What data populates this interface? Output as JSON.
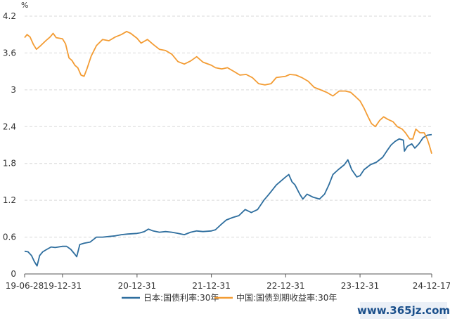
{
  "chart_data": {
    "type": "line",
    "y_unit": "%",
    "ylim": [
      0,
      4.2
    ],
    "y_ticks": [
      "0",
      "0.6",
      "1.2",
      "1.8",
      "2.4",
      "3",
      "3.6",
      "4.2"
    ],
    "x_tick_labels": [
      "19-06-28",
      "19-12-31",
      "20-12-31",
      "21-12-31",
      "22-12-31",
      "23-12-31",
      "24-12-17"
    ],
    "x_tick_dates": [
      "2019-06-28",
      "2019-12-31",
      "2020-12-31",
      "2021-12-31",
      "2022-12-31",
      "2023-12-31",
      "2024-12-17"
    ],
    "grid": true,
    "legend_position": "bottom",
    "series": [
      {
        "name": "日本:国债利率:30年",
        "color": "#2e6e9e",
        "points": [
          [
            "2019-06-28",
            0.37
          ],
          [
            "2019-07-15",
            0.36
          ],
          [
            "2019-08-01",
            0.3
          ],
          [
            "2019-08-15",
            0.2
          ],
          [
            "2019-08-28",
            0.13
          ],
          [
            "2019-09-10",
            0.3
          ],
          [
            "2019-09-25",
            0.36
          ],
          [
            "2019-10-15",
            0.4
          ],
          [
            "2019-11-05",
            0.44
          ],
          [
            "2019-11-25",
            0.43
          ],
          [
            "2019-12-31",
            0.45
          ],
          [
            "2020-01-20",
            0.45
          ],
          [
            "2020-02-10",
            0.4
          ],
          [
            "2020-03-01",
            0.32
          ],
          [
            "2020-03-10",
            0.28
          ],
          [
            "2020-03-25",
            0.48
          ],
          [
            "2020-04-15",
            0.5
          ],
          [
            "2020-05-15",
            0.52
          ],
          [
            "2020-06-15",
            0.6
          ],
          [
            "2020-07-15",
            0.6
          ],
          [
            "2020-08-15",
            0.61
          ],
          [
            "2020-09-15",
            0.62
          ],
          [
            "2020-10-15",
            0.64
          ],
          [
            "2020-11-15",
            0.65
          ],
          [
            "2020-12-31",
            0.66
          ],
          [
            "2021-01-15",
            0.67
          ],
          [
            "2021-02-05",
            0.69
          ],
          [
            "2021-02-25",
            0.73
          ],
          [
            "2021-03-20",
            0.7
          ],
          [
            "2021-04-20",
            0.68
          ],
          [
            "2021-05-20",
            0.69
          ],
          [
            "2021-06-20",
            0.68
          ],
          [
            "2021-07-20",
            0.66
          ],
          [
            "2021-08-20",
            0.64
          ],
          [
            "2021-09-20",
            0.68
          ],
          [
            "2021-10-20",
            0.7
          ],
          [
            "2021-11-20",
            0.69
          ],
          [
            "2021-12-31",
            0.7
          ],
          [
            "2022-01-20",
            0.72
          ],
          [
            "2022-02-15",
            0.8
          ],
          [
            "2022-03-15",
            0.88
          ],
          [
            "2022-04-15",
            0.92
          ],
          [
            "2022-05-15",
            0.95
          ],
          [
            "2022-06-15",
            1.05
          ],
          [
            "2022-07-15",
            1.0
          ],
          [
            "2022-08-15",
            1.05
          ],
          [
            "2022-09-15",
            1.2
          ],
          [
            "2022-10-15",
            1.32
          ],
          [
            "2022-11-15",
            1.45
          ],
          [
            "2022-12-31",
            1.58
          ],
          [
            "2023-01-15",
            1.62
          ],
          [
            "2023-01-31",
            1.5
          ],
          [
            "2023-02-15",
            1.45
          ],
          [
            "2023-03-10",
            1.3
          ],
          [
            "2023-03-25",
            1.22
          ],
          [
            "2023-04-15",
            1.3
          ],
          [
            "2023-05-15",
            1.25
          ],
          [
            "2023-06-15",
            1.22
          ],
          [
            "2023-07-10",
            1.3
          ],
          [
            "2023-07-31",
            1.45
          ],
          [
            "2023-08-20",
            1.62
          ],
          [
            "2023-09-15",
            1.7
          ],
          [
            "2023-10-15",
            1.78
          ],
          [
            "2023-11-01",
            1.86
          ],
          [
            "2023-11-20",
            1.7
          ],
          [
            "2023-12-15",
            1.58
          ],
          [
            "2023-12-31",
            1.6
          ],
          [
            "2024-01-20",
            1.7
          ],
          [
            "2024-02-20",
            1.78
          ],
          [
            "2024-03-20",
            1.82
          ],
          [
            "2024-04-20",
            1.9
          ],
          [
            "2024-05-10",
            2.0
          ],
          [
            "2024-05-31",
            2.1
          ],
          [
            "2024-06-20",
            2.16
          ],
          [
            "2024-07-10",
            2.2
          ],
          [
            "2024-07-31",
            2.18
          ],
          [
            "2024-08-05",
            2.0
          ],
          [
            "2024-08-20",
            2.08
          ],
          [
            "2024-09-10",
            2.12
          ],
          [
            "2024-09-25",
            2.05
          ],
          [
            "2024-10-15",
            2.12
          ],
          [
            "2024-11-05",
            2.22
          ],
          [
            "2024-11-25",
            2.26
          ],
          [
            "2024-12-17",
            2.27
          ]
        ]
      },
      {
        "name": "中国:国债到期收益率:30年",
        "color": "#f39c34",
        "points": [
          [
            "2019-06-28",
            3.85
          ],
          [
            "2019-07-10",
            3.9
          ],
          [
            "2019-07-25",
            3.86
          ],
          [
            "2019-08-10",
            3.74
          ],
          [
            "2019-08-25",
            3.66
          ],
          [
            "2019-09-15",
            3.72
          ],
          [
            "2019-10-10",
            3.8
          ],
          [
            "2019-10-31",
            3.86
          ],
          [
            "2019-11-15",
            3.92
          ],
          [
            "2019-11-30",
            3.85
          ],
          [
            "2019-12-31",
            3.83
          ],
          [
            "2020-01-15",
            3.75
          ],
          [
            "2020-02-01",
            3.52
          ],
          [
            "2020-02-15",
            3.48
          ],
          [
            "2020-03-01",
            3.4
          ],
          [
            "2020-03-15",
            3.36
          ],
          [
            "2020-03-31",
            3.24
          ],
          [
            "2020-04-15",
            3.22
          ],
          [
            "2020-04-30",
            3.35
          ],
          [
            "2020-05-20",
            3.55
          ],
          [
            "2020-06-15",
            3.72
          ],
          [
            "2020-07-15",
            3.82
          ],
          [
            "2020-08-15",
            3.8
          ],
          [
            "2020-09-15",
            3.86
          ],
          [
            "2020-10-15",
            3.9
          ],
          [
            "2020-11-10",
            3.95
          ],
          [
            "2020-11-30",
            3.92
          ],
          [
            "2020-12-31",
            3.84
          ],
          [
            "2021-01-20",
            3.76
          ],
          [
            "2021-02-20",
            3.82
          ],
          [
            "2021-03-20",
            3.74
          ],
          [
            "2021-04-20",
            3.66
          ],
          [
            "2021-05-20",
            3.64
          ],
          [
            "2021-06-20",
            3.58
          ],
          [
            "2021-07-20",
            3.46
          ],
          [
            "2021-08-20",
            3.42
          ],
          [
            "2021-09-20",
            3.47
          ],
          [
            "2021-10-20",
            3.54
          ],
          [
            "2021-11-20",
            3.45
          ],
          [
            "2021-12-31",
            3.4
          ],
          [
            "2022-01-20",
            3.36
          ],
          [
            "2022-02-20",
            3.34
          ],
          [
            "2022-03-20",
            3.36
          ],
          [
            "2022-04-20",
            3.3
          ],
          [
            "2022-05-20",
            3.24
          ],
          [
            "2022-06-20",
            3.25
          ],
          [
            "2022-07-20",
            3.2
          ],
          [
            "2022-08-20",
            3.1
          ],
          [
            "2022-09-20",
            3.08
          ],
          [
            "2022-10-20",
            3.1
          ],
          [
            "2022-11-15",
            3.2
          ],
          [
            "2022-12-31",
            3.22
          ],
          [
            "2023-01-20",
            3.25
          ],
          [
            "2023-02-20",
            3.24
          ],
          [
            "2023-03-20",
            3.2
          ],
          [
            "2023-04-20",
            3.14
          ],
          [
            "2023-05-20",
            3.04
          ],
          [
            "2023-06-20",
            3.0
          ],
          [
            "2023-07-20",
            2.96
          ],
          [
            "2023-08-20",
            2.9
          ],
          [
            "2023-09-20",
            2.98
          ],
          [
            "2023-10-20",
            2.98
          ],
          [
            "2023-11-15",
            2.96
          ],
          [
            "2023-12-05",
            2.9
          ],
          [
            "2023-12-31",
            2.82
          ],
          [
            "2024-01-20",
            2.7
          ],
          [
            "2024-02-10",
            2.55
          ],
          [
            "2024-02-25",
            2.45
          ],
          [
            "2024-03-15",
            2.4
          ],
          [
            "2024-04-05",
            2.5
          ],
          [
            "2024-04-25",
            2.56
          ],
          [
            "2024-05-15",
            2.52
          ],
          [
            "2024-06-10",
            2.48
          ],
          [
            "2024-07-01",
            2.4
          ],
          [
            "2024-07-25",
            2.36
          ],
          [
            "2024-08-10",
            2.3
          ],
          [
            "2024-08-31",
            2.2
          ],
          [
            "2024-09-15",
            2.2
          ],
          [
            "2024-09-30",
            2.36
          ],
          [
            "2024-10-20",
            2.3
          ],
          [
            "2024-11-10",
            2.3
          ],
          [
            "2024-11-25",
            2.2
          ],
          [
            "2024-12-05",
            2.1
          ],
          [
            "2024-12-17",
            1.96
          ]
        ]
      }
    ]
  },
  "watermark": {
    "text": "www.365jz.com"
  }
}
